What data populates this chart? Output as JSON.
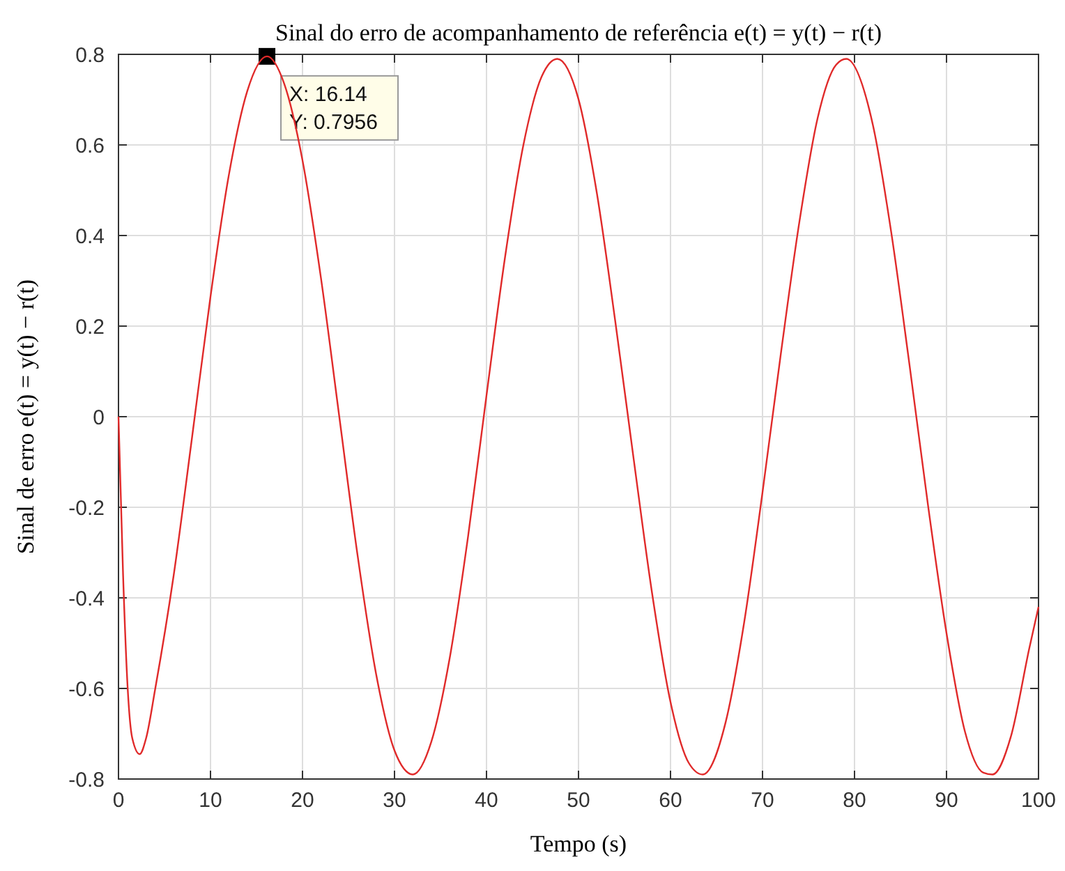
{
  "chart_data": {
    "type": "line",
    "title": "Sinal do erro de acompanhamento de referência e(t) = y(t) − r(t)",
    "xlabel": "Tempo (s)",
    "ylabel": "Sinal de erro e(t) = y(t) − r(t)",
    "x": [
      0,
      0.5,
      1,
      1.5,
      2.3,
      3,
      4,
      6,
      8,
      10,
      12,
      14,
      16.14,
      18,
      20,
      22,
      24,
      26,
      28,
      30,
      32,
      34,
      36,
      38,
      40,
      42,
      44,
      46,
      47.7,
      50,
      52,
      54,
      56,
      58,
      60,
      62,
      63.5,
      66,
      68,
      70,
      72,
      74,
      76,
      78,
      79.1,
      82,
      84,
      86,
      88,
      90,
      92,
      94,
      95,
      97,
      99,
      100
    ],
    "series": [
      {
        "color": "#e02a2a",
        "values": [
          0,
          -0.35,
          -0.6,
          -0.71,
          -0.745,
          -0.71,
          -0.6,
          -0.35,
          -0.045,
          0.265,
          0.534,
          0.719,
          0.7956,
          0.736,
          0.566,
          0.307,
          0,
          -0.308,
          -0.568,
          -0.737,
          -0.79,
          -0.718,
          -0.533,
          -0.264,
          0.047,
          0.35,
          0.599,
          0.751,
          0.79,
          0.701,
          0.493,
          0.21,
          -0.094,
          -0.39,
          -0.63,
          -0.765,
          -0.79,
          -0.674,
          -0.455,
          -0.167,
          0.14,
          0.429,
          0.66,
          0.777,
          0.79,
          0.644,
          0.406,
          0.111,
          -0.197,
          -0.478,
          -0.695,
          -0.786,
          -0.79,
          -0.706,
          -0.511,
          -0.42
        ]
      }
    ],
    "xlim": [
      0,
      100
    ],
    "ylim": [
      -0.8,
      0.8
    ],
    "xticks": [
      0,
      10,
      20,
      30,
      40,
      50,
      60,
      70,
      80,
      90,
      100
    ],
    "yticks": [
      -0.8,
      -0.6,
      -0.4,
      -0.2,
      0,
      0.2,
      0.4,
      0.6,
      0.8
    ],
    "grid": true,
    "marker": "none",
    "line_style": "solid",
    "annotations": [
      {
        "text": "X: 16.14\nY: 0.7956",
        "x": 16.14,
        "y": 0.7956
      }
    ]
  }
}
